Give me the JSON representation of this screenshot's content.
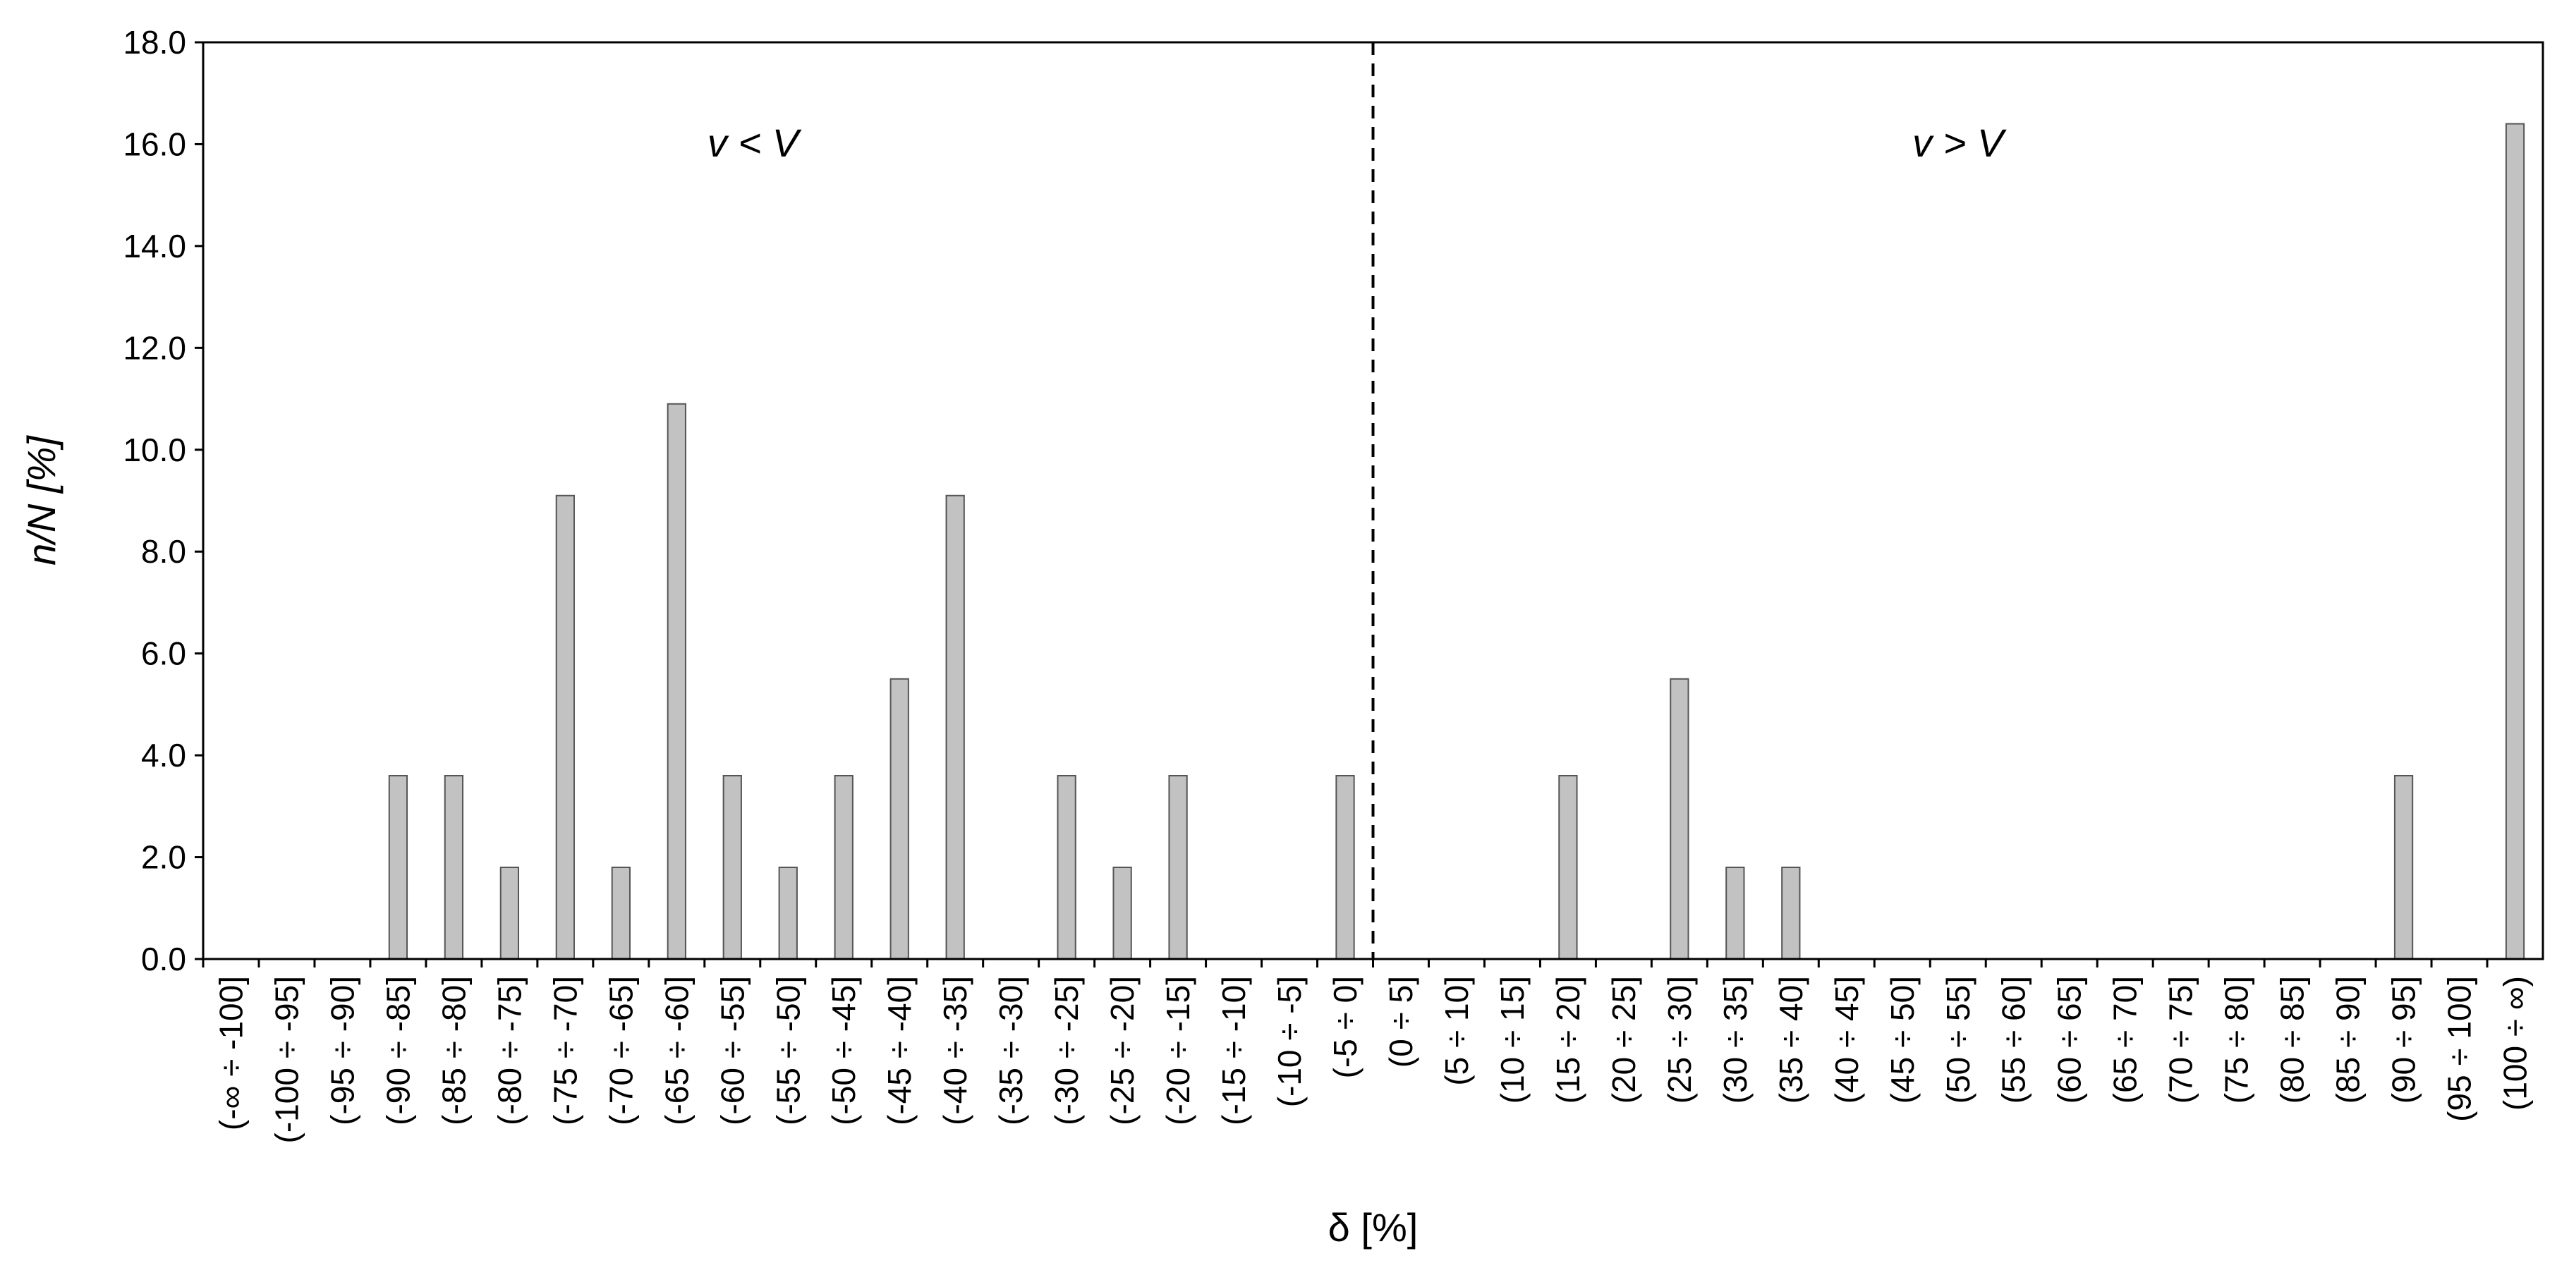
{
  "chart_data": {
    "type": "bar",
    "ylabel": "n/N [%]",
    "xlabel": "δ [%]",
    "ylim": [
      0,
      18
    ],
    "yticks": [
      "0.0",
      "2.0",
      "4.0",
      "6.0",
      "8.0",
      "10.0",
      "12.0",
      "14.0",
      "16.0",
      "18.0"
    ],
    "grid": false,
    "divider_after_category": "(-5 ÷ 0]",
    "annotations": {
      "left": "v < V",
      "right": "v > V"
    },
    "categories": [
      "(-∞ ÷ -100]",
      "(-100 ÷ -95]",
      "(-95 ÷ -90]",
      "(-90 ÷ -85]",
      "(-85 ÷ -80]",
      "(-80 ÷ -75]",
      "(-75 ÷ -70]",
      "(-70 ÷ -65]",
      "(-65 ÷ -60]",
      "(-60 ÷ -55]",
      "(-55 ÷ -50]",
      "(-50 ÷ -45]",
      "(-45 ÷ -40]",
      "(-40 ÷ -35]",
      "(-35 ÷ -30]",
      "(-30 ÷ -25]",
      "(-25 ÷ -20]",
      "(-20 ÷ -15]",
      "(-15 ÷ -10]",
      "(-10 ÷ -5]",
      "(-5 ÷ 0]",
      "(0 ÷ 5]",
      "(5 ÷ 10]",
      "(10 ÷ 15]",
      "(15 ÷ 20]",
      "(20 ÷ 25]",
      "(25 ÷ 30]",
      "(30 ÷ 35]",
      "(35 ÷ 40]",
      "(40 ÷ 45]",
      "(45 ÷ 50]",
      "(50 ÷ 55]",
      "(55 ÷ 60]",
      "(60 ÷ 65]",
      "(65 ÷ 70]",
      "(70 ÷ 75]",
      "(75 ÷ 80]",
      "(80 ÷ 85]",
      "(85 ÷ 90]",
      "(90 ÷ 95]",
      "(95 ÷ 100]",
      "(100 ÷ ∞)"
    ],
    "values": [
      0,
      0,
      0,
      3.6,
      3.6,
      1.8,
      9.1,
      1.8,
      10.9,
      3.6,
      1.8,
      3.6,
      5.5,
      9.1,
      0,
      3.6,
      1.8,
      3.6,
      0,
      0,
      3.6,
      0,
      0,
      0,
      3.6,
      0,
      5.5,
      1.8,
      1.8,
      0,
      0,
      0,
      0,
      0,
      0,
      0,
      0,
      0,
      0,
      3.6,
      0,
      16.4
    ],
    "colors": {
      "bar_fill": "#c2c2c2",
      "bar_stroke": "#555555"
    }
  }
}
